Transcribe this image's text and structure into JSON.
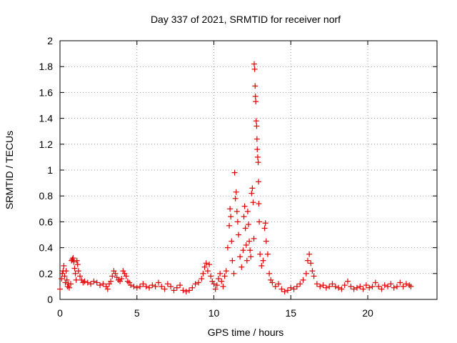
{
  "chart_data": {
    "type": "scatter",
    "title": "Day 337 of 2021, SRMTID for receiver norf",
    "xlabel": "GPS time / hours",
    "ylabel": "SRMTID / TECUs",
    "xlim": [
      0,
      24.5
    ],
    "ylim": [
      0,
      2
    ],
    "xticks": [
      0,
      5,
      10,
      15,
      20
    ],
    "yticks": [
      0,
      0.2,
      0.4,
      0.6,
      0.8,
      1,
      1.2,
      1.4,
      1.6,
      1.8,
      2
    ],
    "xtick_labels": [
      "0",
      "5",
      "10",
      "15",
      "20"
    ],
    "ytick_labels": [
      "0",
      "0.2",
      "0.4",
      "0.6",
      "0.8",
      "1",
      "1.2",
      "1.4",
      "1.6",
      "1.8",
      "2"
    ],
    "grid": true,
    "marker": "+",
    "color": "#e00000",
    "series": [
      {
        "name": "SRMTID",
        "points": [
          [
            0.0,
            0.08
          ],
          [
            0.1,
            0.16
          ],
          [
            0.15,
            0.2
          ],
          [
            0.2,
            0.22
          ],
          [
            0.25,
            0.26
          ],
          [
            0.3,
            0.18
          ],
          [
            0.35,
            0.13
          ],
          [
            0.4,
            0.22
          ],
          [
            0.45,
            0.15
          ],
          [
            0.5,
            0.1
          ],
          [
            0.55,
            0.12
          ],
          [
            0.6,
            0.09
          ],
          [
            0.7,
            0.12
          ],
          [
            0.75,
            0.3
          ],
          [
            0.8,
            0.31
          ],
          [
            0.85,
            0.32
          ],
          [
            0.9,
            0.29
          ],
          [
            0.95,
            0.24
          ],
          [
            1.0,
            0.2
          ],
          [
            1.05,
            0.15
          ],
          [
            1.1,
            0.3
          ],
          [
            1.15,
            0.27
          ],
          [
            1.2,
            0.22
          ],
          [
            1.3,
            0.18
          ],
          [
            1.4,
            0.15
          ],
          [
            1.5,
            0.13
          ],
          [
            1.6,
            0.14
          ],
          [
            1.8,
            0.13
          ],
          [
            2.0,
            0.12
          ],
          [
            2.2,
            0.14
          ],
          [
            2.4,
            0.13
          ],
          [
            2.6,
            0.11
          ],
          [
            2.8,
            0.12
          ],
          [
            3.0,
            0.1
          ],
          [
            3.1,
            0.08
          ],
          [
            3.2,
            0.12
          ],
          [
            3.3,
            0.14
          ],
          [
            3.4,
            0.18
          ],
          [
            3.5,
            0.22
          ],
          [
            3.6,
            0.2
          ],
          [
            3.7,
            0.17
          ],
          [
            3.8,
            0.15
          ],
          [
            3.9,
            0.14
          ],
          [
            4.0,
            0.16
          ],
          [
            4.1,
            0.22
          ],
          [
            4.2,
            0.2
          ],
          [
            4.3,
            0.18
          ],
          [
            4.4,
            0.14
          ],
          [
            4.5,
            0.13
          ],
          [
            4.6,
            0.11
          ],
          [
            4.8,
            0.1
          ],
          [
            5.0,
            0.09
          ],
          [
            5.2,
            0.1
          ],
          [
            5.4,
            0.12
          ],
          [
            5.6,
            0.1
          ],
          [
            5.8,
            0.09
          ],
          [
            6.0,
            0.11
          ],
          [
            6.2,
            0.1
          ],
          [
            6.4,
            0.13
          ],
          [
            6.6,
            0.1
          ],
          [
            6.8,
            0.08
          ],
          [
            7.0,
            0.12
          ],
          [
            7.2,
            0.1
          ],
          [
            7.4,
            0.07
          ],
          [
            7.6,
            0.09
          ],
          [
            7.8,
            0.11
          ],
          [
            8.0,
            0.07
          ],
          [
            8.2,
            0.06
          ],
          [
            8.4,
            0.07
          ],
          [
            8.6,
            0.09
          ],
          [
            8.8,
            0.12
          ],
          [
            9.0,
            0.13
          ],
          [
            9.2,
            0.16
          ],
          [
            9.3,
            0.2
          ],
          [
            9.4,
            0.25
          ],
          [
            9.5,
            0.28
          ],
          [
            9.6,
            0.22
          ],
          [
            9.7,
            0.27
          ],
          [
            9.8,
            0.18
          ],
          [
            9.9,
            0.14
          ],
          [
            10.0,
            0.12
          ],
          [
            10.1,
            0.08
          ],
          [
            10.2,
            0.11
          ],
          [
            10.3,
            0.16
          ],
          [
            10.4,
            0.2
          ],
          [
            10.5,
            0.14
          ],
          [
            10.6,
            0.1
          ],
          [
            10.7,
            0.18
          ],
          [
            10.8,
            0.22
          ],
          [
            10.9,
            0.4
          ],
          [
            11.0,
            0.57
          ],
          [
            11.05,
            0.7
          ],
          [
            11.1,
            0.64
          ],
          [
            11.15,
            0.45
          ],
          [
            11.2,
            0.3
          ],
          [
            11.3,
            0.2
          ],
          [
            11.35,
            0.98
          ],
          [
            11.4,
            0.78
          ],
          [
            11.45,
            0.83
          ],
          [
            11.5,
            0.68
          ],
          [
            11.55,
            0.6
          ],
          [
            11.6,
            0.5
          ],
          [
            11.7,
            0.33
          ],
          [
            11.8,
            0.25
          ],
          [
            11.9,
            0.38
          ],
          [
            11.95,
            0.64
          ],
          [
            12.0,
            0.72
          ],
          [
            12.05,
            0.55
          ],
          [
            12.1,
            0.42
          ],
          [
            12.15,
            0.3
          ],
          [
            12.2,
            0.68
          ],
          [
            12.25,
            0.58
          ],
          [
            12.3,
            0.45
          ],
          [
            12.35,
            0.38
          ],
          [
            12.4,
            0.33
          ],
          [
            12.45,
            0.82
          ],
          [
            12.5,
            0.86
          ],
          [
            12.55,
            0.75
          ],
          [
            12.6,
            0.47
          ],
          [
            12.62,
            1.82
          ],
          [
            12.65,
            1.78
          ],
          [
            12.68,
            1.65
          ],
          [
            12.7,
            1.57
          ],
          [
            12.72,
            1.53
          ],
          [
            12.75,
            1.38
          ],
          [
            12.78,
            1.34
          ],
          [
            12.8,
            1.24
          ],
          [
            12.82,
            1.16
          ],
          [
            12.85,
            1.1
          ],
          [
            12.88,
            1.06
          ],
          [
            12.9,
            0.91
          ],
          [
            12.92,
            0.74
          ],
          [
            12.95,
            0.6
          ],
          [
            13.0,
            0.35
          ],
          [
            13.1,
            0.26
          ],
          [
            13.2,
            0.3
          ],
          [
            13.3,
            0.55
          ],
          [
            13.35,
            0.59
          ],
          [
            13.4,
            0.45
          ],
          [
            13.5,
            0.35
          ],
          [
            13.6,
            0.2
          ],
          [
            13.7,
            0.15
          ],
          [
            13.8,
            0.13
          ],
          [
            14.0,
            0.1
          ],
          [
            14.2,
            0.12
          ],
          [
            14.4,
            0.08
          ],
          [
            14.6,
            0.06
          ],
          [
            14.8,
            0.07
          ],
          [
            15.0,
            0.09
          ],
          [
            15.2,
            0.08
          ],
          [
            15.4,
            0.1
          ],
          [
            15.6,
            0.12
          ],
          [
            15.8,
            0.15
          ],
          [
            16.0,
            0.2
          ],
          [
            16.1,
            0.3
          ],
          [
            16.2,
            0.35
          ],
          [
            16.3,
            0.28
          ],
          [
            16.4,
            0.22
          ],
          [
            16.5,
            0.18
          ],
          [
            16.7,
            0.12
          ],
          [
            16.9,
            0.1
          ],
          [
            17.1,
            0.11
          ],
          [
            17.3,
            0.09
          ],
          [
            17.5,
            0.1
          ],
          [
            17.7,
            0.12
          ],
          [
            17.9,
            0.1
          ],
          [
            18.1,
            0.09
          ],
          [
            18.3,
            0.08
          ],
          [
            18.5,
            0.11
          ],
          [
            18.7,
            0.14
          ],
          [
            18.9,
            0.1
          ],
          [
            19.1,
            0.08
          ],
          [
            19.3,
            0.09
          ],
          [
            19.5,
            0.1
          ],
          [
            19.7,
            0.08
          ],
          [
            19.9,
            0.11
          ],
          [
            20.1,
            0.09
          ],
          [
            20.3,
            0.1
          ],
          [
            20.5,
            0.13
          ],
          [
            20.7,
            0.1
          ],
          [
            20.9,
            0.08
          ],
          [
            21.1,
            0.11
          ],
          [
            21.3,
            0.1
          ],
          [
            21.5,
            0.12
          ],
          [
            21.7,
            0.09
          ],
          [
            21.9,
            0.1
          ],
          [
            22.1,
            0.13
          ],
          [
            22.3,
            0.1
          ],
          [
            22.5,
            0.12
          ],
          [
            22.7,
            0.11
          ],
          [
            22.8,
            0.1
          ]
        ]
      }
    ]
  }
}
